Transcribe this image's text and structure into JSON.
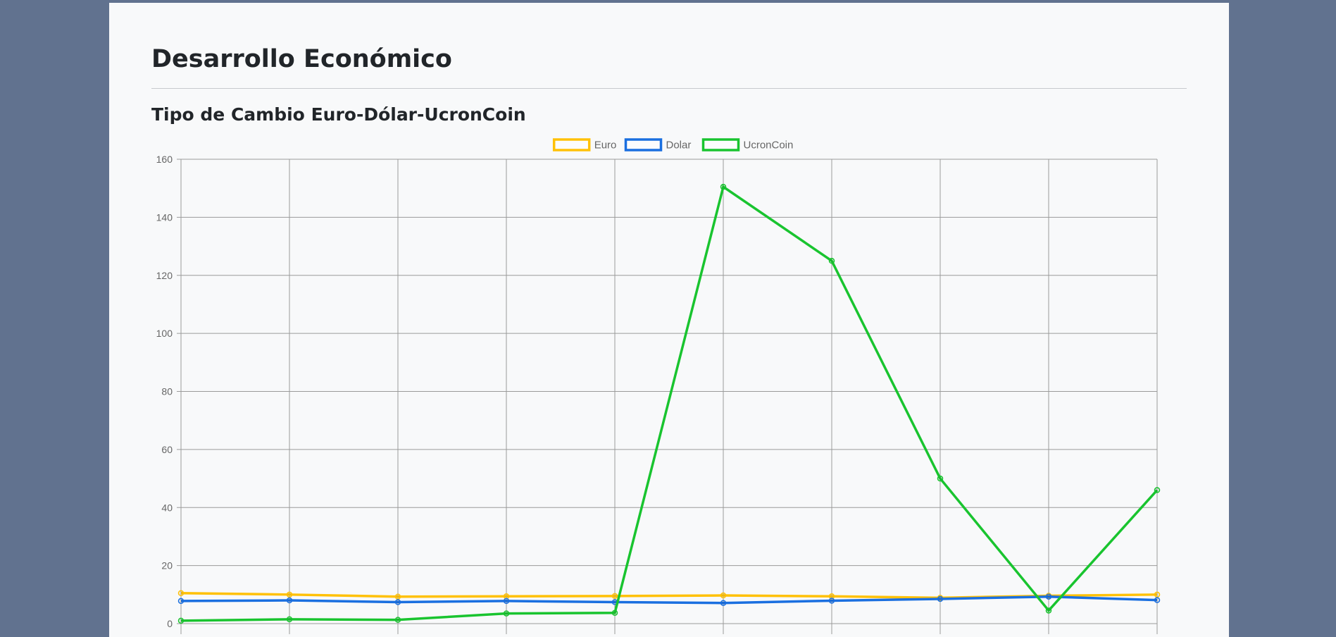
{
  "page": {
    "title": "Desarrollo Económico",
    "section_title": "Tipo de Cambio Euro-Dólar-UcronCoin"
  },
  "chart_data": {
    "type": "line",
    "title": "",
    "xlabel": "",
    "ylabel": "",
    "ylim": [
      0,
      160
    ],
    "y_ticks": [
      0,
      20,
      40,
      60,
      80,
      100,
      120,
      140,
      160
    ],
    "grid": true,
    "legend_position": "top",
    "series": [
      {
        "name": "Euro",
        "color": "#ffc107",
        "values": [
          10.5,
          10.0,
          9.3,
          9.4,
          9.5,
          9.7,
          9.4,
          8.9,
          9.6,
          10.0
        ]
      },
      {
        "name": "Dolar",
        "color": "#1a6fe0",
        "values": [
          7.8,
          8.0,
          7.4,
          7.8,
          7.4,
          7.1,
          7.9,
          8.5,
          9.3,
          8.1
        ]
      },
      {
        "name": "UcronCoin",
        "color": "#19c42f",
        "values": [
          1.0,
          1.5,
          1.3,
          3.5,
          3.7,
          150.5,
          125.0,
          50.0,
          4.5,
          46.0
        ]
      }
    ]
  }
}
